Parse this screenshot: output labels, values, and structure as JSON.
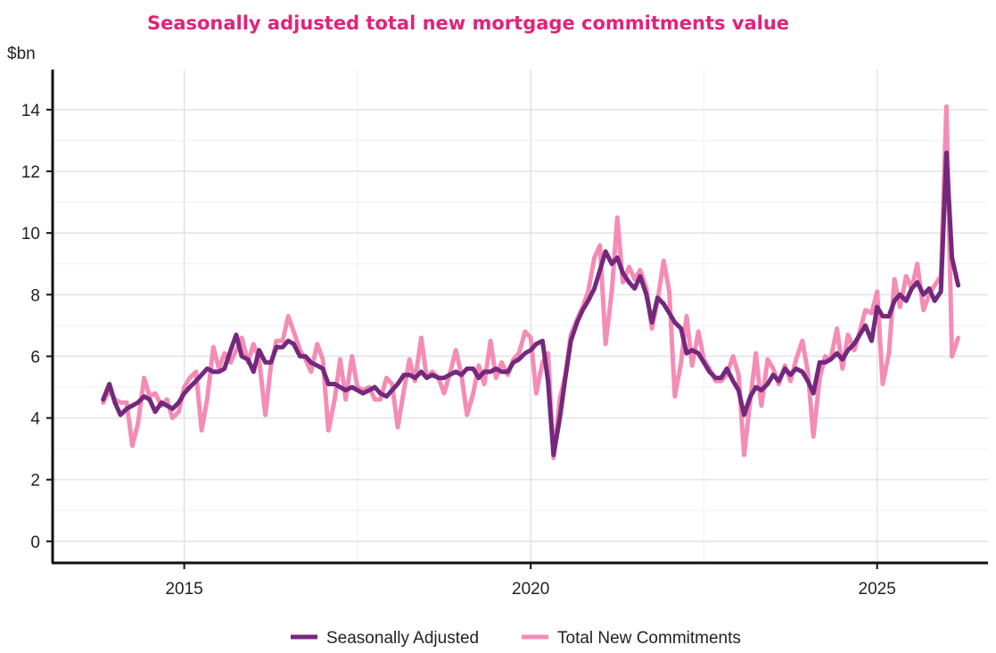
{
  "chart_data": {
    "type": "line",
    "title": "Seasonally adjusted total new mortgage commitments value",
    "ylabel": "$bn",
    "xlabel": "",
    "ylim": [
      -0.7,
      15.3
    ],
    "xlim": [
      2013.1,
      2026.6
    ],
    "yticks": [
      0,
      2,
      4,
      6,
      8,
      10,
      12,
      14
    ],
    "xticks": [
      2015,
      2020,
      2025
    ],
    "grid": true,
    "legend_position": "bottom-center",
    "colors": {
      "title": "#e0237a",
      "seasonally_adjusted": "#74287d",
      "total": "#f48cb5"
    },
    "series": [
      {
        "name": "Seasonally Adjusted",
        "points": [
          [
            2013.83,
            4.6
          ],
          [
            2013.92,
            5.1
          ],
          [
            2014.0,
            4.5
          ],
          [
            2014.08,
            4.1
          ],
          [
            2014.17,
            4.3
          ],
          [
            2014.25,
            4.4
          ],
          [
            2014.33,
            4.5
          ],
          [
            2014.42,
            4.7
          ],
          [
            2014.5,
            4.6
          ],
          [
            2014.58,
            4.2
          ],
          [
            2014.67,
            4.5
          ],
          [
            2014.75,
            4.4
          ],
          [
            2014.83,
            4.3
          ],
          [
            2014.92,
            4.5
          ],
          [
            2015.0,
            4.8
          ],
          [
            2015.08,
            5.0
          ],
          [
            2015.17,
            5.2
          ],
          [
            2015.25,
            5.4
          ],
          [
            2015.33,
            5.6
          ],
          [
            2015.42,
            5.5
          ],
          [
            2015.5,
            5.5
          ],
          [
            2015.58,
            5.6
          ],
          [
            2015.67,
            6.2
          ],
          [
            2015.75,
            6.7
          ],
          [
            2015.83,
            6.0
          ],
          [
            2015.92,
            5.9
          ],
          [
            2016.0,
            5.5
          ],
          [
            2016.08,
            6.2
          ],
          [
            2016.17,
            5.8
          ],
          [
            2016.25,
            5.8
          ],
          [
            2016.33,
            6.3
          ],
          [
            2016.42,
            6.3
          ],
          [
            2016.5,
            6.5
          ],
          [
            2016.58,
            6.4
          ],
          [
            2016.67,
            6.0
          ],
          [
            2016.75,
            6.0
          ],
          [
            2016.83,
            5.8
          ],
          [
            2016.92,
            5.7
          ],
          [
            2017.0,
            5.6
          ],
          [
            2017.08,
            5.1
          ],
          [
            2017.17,
            5.1
          ],
          [
            2017.25,
            5.0
          ],
          [
            2017.33,
            4.9
          ],
          [
            2017.42,
            5.0
          ],
          [
            2017.5,
            4.9
          ],
          [
            2017.58,
            4.8
          ],
          [
            2017.67,
            4.9
          ],
          [
            2017.75,
            5.0
          ],
          [
            2017.83,
            4.8
          ],
          [
            2017.92,
            4.7
          ],
          [
            2018.0,
            4.9
          ],
          [
            2018.08,
            5.1
          ],
          [
            2018.17,
            5.4
          ],
          [
            2018.25,
            5.4
          ],
          [
            2018.33,
            5.3
          ],
          [
            2018.42,
            5.5
          ],
          [
            2018.5,
            5.3
          ],
          [
            2018.58,
            5.4
          ],
          [
            2018.67,
            5.3
          ],
          [
            2018.75,
            5.3
          ],
          [
            2018.83,
            5.4
          ],
          [
            2018.92,
            5.5
          ],
          [
            2019.0,
            5.4
          ],
          [
            2019.08,
            5.6
          ],
          [
            2019.17,
            5.6
          ],
          [
            2019.25,
            5.3
          ],
          [
            2019.33,
            5.5
          ],
          [
            2019.42,
            5.5
          ],
          [
            2019.5,
            5.6
          ],
          [
            2019.58,
            5.5
          ],
          [
            2019.67,
            5.5
          ],
          [
            2019.75,
            5.8
          ],
          [
            2019.83,
            5.9
          ],
          [
            2019.92,
            6.1
          ],
          [
            2020.0,
            6.2
          ],
          [
            2020.08,
            6.4
          ],
          [
            2020.17,
            6.5
          ],
          [
            2020.25,
            5.2
          ],
          [
            2020.33,
            2.8
          ],
          [
            2020.42,
            4.0
          ],
          [
            2020.5,
            5.3
          ],
          [
            2020.58,
            6.5
          ],
          [
            2020.67,
            7.1
          ],
          [
            2020.75,
            7.5
          ],
          [
            2020.83,
            7.8
          ],
          [
            2020.92,
            8.2
          ],
          [
            2021.0,
            8.8
          ],
          [
            2021.08,
            9.4
          ],
          [
            2021.17,
            9.0
          ],
          [
            2021.25,
            9.2
          ],
          [
            2021.33,
            8.7
          ],
          [
            2021.42,
            8.4
          ],
          [
            2021.5,
            8.2
          ],
          [
            2021.58,
            8.6
          ],
          [
            2021.67,
            8.0
          ],
          [
            2021.75,
            7.1
          ],
          [
            2021.83,
            7.9
          ],
          [
            2021.92,
            7.7
          ],
          [
            2022.0,
            7.4
          ],
          [
            2022.08,
            7.1
          ],
          [
            2022.17,
            6.9
          ],
          [
            2022.25,
            6.1
          ],
          [
            2022.33,
            6.2
          ],
          [
            2022.42,
            6.1
          ],
          [
            2022.5,
            5.8
          ],
          [
            2022.58,
            5.5
          ],
          [
            2022.67,
            5.3
          ],
          [
            2022.75,
            5.3
          ],
          [
            2022.83,
            5.6
          ],
          [
            2022.92,
            5.2
          ],
          [
            2023.0,
            4.9
          ],
          [
            2023.08,
            4.1
          ],
          [
            2023.17,
            4.7
          ],
          [
            2023.25,
            5.0
          ],
          [
            2023.33,
            4.9
          ],
          [
            2023.42,
            5.1
          ],
          [
            2023.5,
            5.4
          ],
          [
            2023.58,
            5.2
          ],
          [
            2023.67,
            5.6
          ],
          [
            2023.75,
            5.4
          ],
          [
            2023.83,
            5.6
          ],
          [
            2023.92,
            5.5
          ],
          [
            2024.0,
            5.2
          ],
          [
            2024.08,
            4.8
          ],
          [
            2024.17,
            5.8
          ],
          [
            2024.25,
            5.8
          ],
          [
            2024.33,
            5.9
          ],
          [
            2024.42,
            6.1
          ],
          [
            2024.5,
            5.9
          ],
          [
            2024.58,
            6.2
          ],
          [
            2024.67,
            6.4
          ],
          [
            2024.75,
            6.7
          ],
          [
            2024.83,
            7.0
          ],
          [
            2024.92,
            6.5
          ],
          [
            2025.0,
            7.6
          ],
          [
            2025.08,
            7.3
          ],
          [
            2025.17,
            7.3
          ],
          [
            2025.25,
            7.8
          ],
          [
            2025.33,
            8.0
          ],
          [
            2025.42,
            7.8
          ],
          [
            2025.5,
            8.2
          ],
          [
            2025.58,
            8.4
          ],
          [
            2025.67,
            8.0
          ],
          [
            2025.75,
            8.2
          ],
          [
            2025.83,
            7.8
          ],
          [
            2025.92,
            8.1
          ],
          [
            2026.0,
            12.6
          ],
          [
            2026.08,
            9.2
          ],
          [
            2026.17,
            8.3
          ]
        ]
      },
      {
        "name": "Total New Commitments",
        "points": [
          [
            2013.83,
            4.5
          ],
          [
            2013.92,
            4.9
          ],
          [
            2014.0,
            4.6
          ],
          [
            2014.08,
            4.5
          ],
          [
            2014.17,
            4.5
          ],
          [
            2014.25,
            3.1
          ],
          [
            2014.33,
            3.8
          ],
          [
            2014.42,
            5.3
          ],
          [
            2014.5,
            4.7
          ],
          [
            2014.58,
            4.8
          ],
          [
            2014.67,
            4.4
          ],
          [
            2014.75,
            4.6
          ],
          [
            2014.83,
            4.0
          ],
          [
            2014.92,
            4.2
          ],
          [
            2015.0,
            5.0
          ],
          [
            2015.08,
            5.3
          ],
          [
            2015.17,
            5.5
          ],
          [
            2015.25,
            3.6
          ],
          [
            2015.33,
            4.6
          ],
          [
            2015.42,
            6.3
          ],
          [
            2015.5,
            5.6
          ],
          [
            2015.58,
            6.1
          ],
          [
            2015.67,
            5.8
          ],
          [
            2015.75,
            6.2
          ],
          [
            2015.83,
            6.6
          ],
          [
            2015.92,
            5.8
          ],
          [
            2016.0,
            6.4
          ],
          [
            2016.08,
            5.9
          ],
          [
            2016.17,
            4.1
          ],
          [
            2016.25,
            5.7
          ],
          [
            2016.33,
            6.5
          ],
          [
            2016.42,
            6.5
          ],
          [
            2016.5,
            7.3
          ],
          [
            2016.58,
            6.8
          ],
          [
            2016.67,
            6.2
          ],
          [
            2016.75,
            5.9
          ],
          [
            2016.83,
            5.5
          ],
          [
            2016.92,
            6.4
          ],
          [
            2017.0,
            5.9
          ],
          [
            2017.08,
            3.6
          ],
          [
            2017.17,
            4.6
          ],
          [
            2017.25,
            5.9
          ],
          [
            2017.33,
            4.6
          ],
          [
            2017.42,
            6.0
          ],
          [
            2017.5,
            5.0
          ],
          [
            2017.58,
            4.9
          ],
          [
            2017.67,
            5.0
          ],
          [
            2017.75,
            4.6
          ],
          [
            2017.83,
            4.6
          ],
          [
            2017.92,
            5.3
          ],
          [
            2018.0,
            5.1
          ],
          [
            2018.08,
            3.7
          ],
          [
            2018.17,
            4.9
          ],
          [
            2018.25,
            5.9
          ],
          [
            2018.33,
            5.2
          ],
          [
            2018.42,
            6.6
          ],
          [
            2018.5,
            5.3
          ],
          [
            2018.58,
            5.5
          ],
          [
            2018.67,
            5.3
          ],
          [
            2018.75,
            4.8
          ],
          [
            2018.83,
            5.4
          ],
          [
            2018.92,
            6.2
          ],
          [
            2019.0,
            5.4
          ],
          [
            2019.08,
            4.1
          ],
          [
            2019.17,
            4.8
          ],
          [
            2019.25,
            5.7
          ],
          [
            2019.33,
            5.1
          ],
          [
            2019.42,
            6.5
          ],
          [
            2019.5,
            5.3
          ],
          [
            2019.58,
            5.8
          ],
          [
            2019.67,
            5.4
          ],
          [
            2019.75,
            5.9
          ],
          [
            2019.83,
            6.1
          ],
          [
            2019.92,
            6.8
          ],
          [
            2020.0,
            6.6
          ],
          [
            2020.08,
            4.8
          ],
          [
            2020.17,
            5.8
          ],
          [
            2020.25,
            6.1
          ],
          [
            2020.33,
            2.7
          ],
          [
            2020.42,
            4.6
          ],
          [
            2020.5,
            5.4
          ],
          [
            2020.58,
            6.7
          ],
          [
            2020.67,
            7.2
          ],
          [
            2020.75,
            7.6
          ],
          [
            2020.83,
            8.1
          ],
          [
            2020.92,
            9.2
          ],
          [
            2021.0,
            9.6
          ],
          [
            2021.08,
            6.4
          ],
          [
            2021.17,
            8.1
          ],
          [
            2021.25,
            10.5
          ],
          [
            2021.33,
            8.4
          ],
          [
            2021.42,
            8.9
          ],
          [
            2021.5,
            8.5
          ],
          [
            2021.58,
            8.8
          ],
          [
            2021.67,
            8.2
          ],
          [
            2021.75,
            6.9
          ],
          [
            2021.83,
            7.8
          ],
          [
            2021.92,
            9.1
          ],
          [
            2022.0,
            8.1
          ],
          [
            2022.08,
            4.7
          ],
          [
            2022.17,
            5.8
          ],
          [
            2022.25,
            7.3
          ],
          [
            2022.33,
            5.7
          ],
          [
            2022.42,
            6.8
          ],
          [
            2022.5,
            5.9
          ],
          [
            2022.58,
            5.6
          ],
          [
            2022.67,
            5.2
          ],
          [
            2022.75,
            5.2
          ],
          [
            2022.83,
            5.4
          ],
          [
            2022.92,
            6.0
          ],
          [
            2023.0,
            5.4
          ],
          [
            2023.08,
            2.8
          ],
          [
            2023.17,
            4.6
          ],
          [
            2023.25,
            6.1
          ],
          [
            2023.33,
            4.4
          ],
          [
            2023.42,
            5.9
          ],
          [
            2023.5,
            5.6
          ],
          [
            2023.58,
            5.1
          ],
          [
            2023.67,
            5.7
          ],
          [
            2023.75,
            5.2
          ],
          [
            2023.83,
            5.9
          ],
          [
            2023.92,
            6.5
          ],
          [
            2024.0,
            5.5
          ],
          [
            2024.08,
            3.4
          ],
          [
            2024.17,
            5.3
          ],
          [
            2024.25,
            6.0
          ],
          [
            2024.33,
            5.9
          ],
          [
            2024.42,
            6.9
          ],
          [
            2024.5,
            5.6
          ],
          [
            2024.58,
            6.7
          ],
          [
            2024.67,
            6.2
          ],
          [
            2024.75,
            6.8
          ],
          [
            2024.83,
            7.5
          ],
          [
            2024.92,
            7.4
          ],
          [
            2025.0,
            8.1
          ],
          [
            2025.08,
            5.1
          ],
          [
            2025.17,
            6.1
          ],
          [
            2025.25,
            8.5
          ],
          [
            2025.33,
            7.6
          ],
          [
            2025.42,
            8.6
          ],
          [
            2025.5,
            8.2
          ],
          [
            2025.58,
            9.0
          ],
          [
            2025.67,
            7.5
          ],
          [
            2025.75,
            8.0
          ],
          [
            2025.83,
            8.3
          ],
          [
            2025.92,
            8.6
          ],
          [
            2026.0,
            14.1
          ],
          [
            2026.08,
            6.0
          ],
          [
            2026.17,
            6.6
          ]
        ]
      }
    ]
  }
}
